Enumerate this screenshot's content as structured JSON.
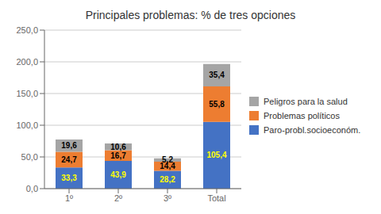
{
  "chart_data": {
    "type": "bar",
    "title": "Principales problemas: % de tres opciones",
    "stacked": true,
    "data_labels": true,
    "grid": true,
    "legend": "right",
    "categories": [
      "1º",
      "2º",
      "3º",
      "Total"
    ],
    "series": [
      {
        "name": "Paro-probl.socioeconóm.",
        "color": "#4472C4",
        "values": [
          33.3,
          43.9,
          28.2,
          105.4
        ],
        "value_labels": [
          "33,3",
          "43,9",
          "28,2",
          "105,4"
        ]
      },
      {
        "name": "Problemas políticos",
        "color": "#ED7D31",
        "values": [
          24.7,
          16.7,
          14.4,
          55.8
        ],
        "value_labels": [
          "24,7",
          "16,7",
          "14,4",
          "55,8"
        ]
      },
      {
        "name": "Peligros para la salud",
        "color": "#A5A5A5",
        "values": [
          19.6,
          10.6,
          5.2,
          35.4
        ],
        "value_labels": [
          "19,6",
          "10,6",
          "5,2",
          "35,4"
        ]
      }
    ],
    "ylim": [
      0,
      250
    ],
    "yticks": [
      {
        "value": 0,
        "label": "0,0"
      },
      {
        "value": 50,
        "label": "50,0"
      },
      {
        "value": 100,
        "label": "100,0"
      },
      {
        "value": 150,
        "label": "150,0"
      },
      {
        "value": 200,
        "label": "200,0"
      },
      {
        "value": 250,
        "label": "250,0"
      }
    ]
  }
}
